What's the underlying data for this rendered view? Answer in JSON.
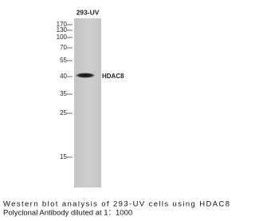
{
  "lane_label": "293-UV",
  "markers": [
    "170",
    "130",
    "100",
    "70",
    "55",
    "40",
    "35",
    "25",
    "15"
  ],
  "band_label": "HDAC8",
  "caption": [
    "Western blot analysis of 293-UV cells using HDAC8",
    "Polyclonal Antibody diluted at 1：1000"
  ]
}
